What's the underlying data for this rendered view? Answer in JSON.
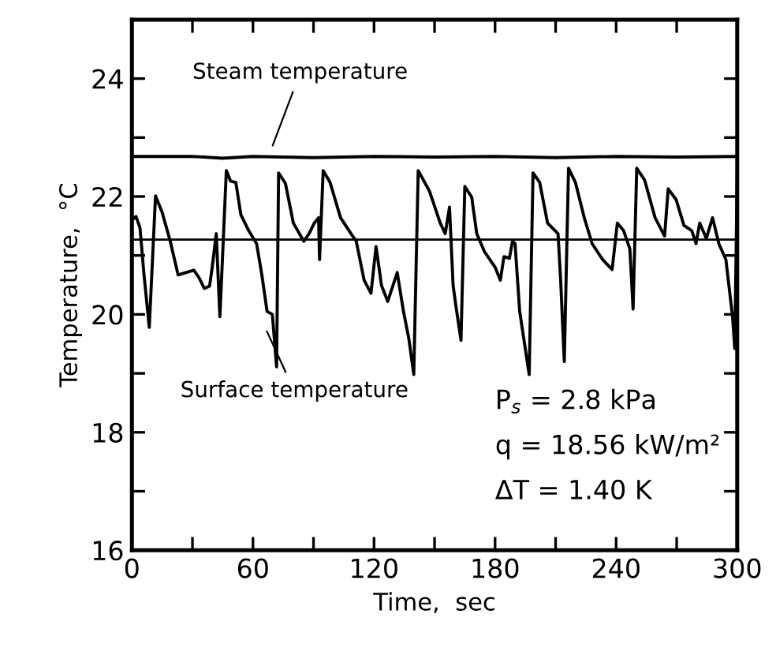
{
  "chart_data": {
    "type": "line",
    "xlabel": "Time,  sec",
    "ylabel": "Temperature,  °C",
    "xlim": [
      0,
      300
    ],
    "ylim": [
      16,
      25
    ],
    "xticks": [
      0,
      {
        "value": 30,
        "label": null
      },
      60,
      {
        "value": 90,
        "label": null
      },
      120,
      {
        "value": 150,
        "label": null
      },
      180,
      {
        "value": 210,
        "label": null
      },
      240,
      {
        "value": 270,
        "label": null
      },
      300
    ],
    "yticks": [
      16,
      {
        "value": 17,
        "label": null
      },
      18,
      {
        "value": 19,
        "label": null
      },
      20,
      {
        "value": 21,
        "label": null
      },
      22,
      {
        "value": 23,
        "label": null
      },
      24,
      {
        "value": 25,
        "label": null
      }
    ],
    "grid": false,
    "marker": "none",
    "line_style": "solid",
    "series": [
      {
        "name": "Steam temperature",
        "color": "#000000",
        "x": [
          0,
          30,
          45,
          60,
          90,
          120,
          150,
          180,
          210,
          240,
          270,
          300
        ],
        "values": [
          22.68,
          22.68,
          22.65,
          22.68,
          22.66,
          22.68,
          22.67,
          22.68,
          22.66,
          22.68,
          22.67,
          22.68
        ]
      },
      {
        "name": "Surface temperature",
        "color": "#000000",
        "x": [
          0,
          2,
          4,
          6,
          8.6,
          11.7,
          15,
          19,
          22.9,
          26.8,
          30.7,
          33.3,
          35.9,
          38.5,
          39.8,
          41.8,
          43.6,
          46.8,
          48.9,
          51.5,
          54,
          57.9,
          61.8,
          64.4,
          67,
          69.6,
          71.7,
          72.7,
          76.1,
          80,
          85.2,
          87.8,
          90.4,
          92.5,
          93,
          94.8,
          98.2,
          103.4,
          108.6,
          111.2,
          115.1,
          118.5,
          121,
          123.7,
          126.8,
          131.5,
          134.6,
          137.2,
          139.7,
          141.9,
          147.5,
          152.8,
          155.3,
          157.4,
          159.2,
          160.6,
          163.1,
          165,
          168.4,
          170.9,
          174.8,
          180,
          182.6,
          184.4,
          187.1,
          188.6,
          189.9,
          192.2,
          196.9,
          198.8,
          202.1,
          206,
          211.2,
          212.5,
          214.3,
          216.4,
          219.8,
          224.2,
          228.1,
          233.3,
          238,
          240.6,
          243.7,
          246.8,
          248.4,
          250.2,
          254.1,
          259.3,
          264,
          265.8,
          269.7,
          273.6,
          277.5,
          279.6,
          281.4,
          284.7,
          287.8,
          290.9,
          294.4,
          297.7,
          298.8,
          300
        ],
        "values": [
          21.6,
          21.66,
          21.47,
          20.67,
          19.78,
          22.01,
          21.73,
          21.24,
          20.67,
          20.71,
          20.75,
          20.62,
          20.44,
          20.48,
          20.8,
          21.37,
          19.96,
          22.44,
          22.26,
          22.24,
          21.69,
          21.42,
          21.2,
          20.67,
          20.05,
          20.0,
          19.11,
          22.4,
          22.22,
          21.55,
          21.24,
          21.37,
          21.55,
          21.64,
          20.93,
          22.44,
          22.24,
          21.64,
          21.37,
          21.24,
          20.58,
          20.36,
          21.15,
          20.49,
          20.22,
          20.71,
          20.05,
          19.6,
          18.98,
          22.44,
          22.09,
          21.55,
          21.37,
          21.82,
          20.49,
          20.14,
          19.56,
          22.17,
          21.99,
          21.37,
          21.06,
          20.8,
          20.58,
          20.98,
          20.95,
          21.24,
          21.2,
          20.05,
          18.98,
          22.4,
          22.24,
          21.55,
          21.37,
          20.58,
          19.2,
          22.48,
          22.24,
          21.64,
          21.2,
          20.93,
          20.76,
          21.55,
          21.42,
          21.11,
          20.09,
          22.48,
          22.28,
          21.64,
          21.33,
          22.13,
          21.95,
          21.51,
          21.42,
          21.2,
          21.55,
          21.29,
          21.64,
          21.2,
          20.93,
          19.96,
          19.42,
          22.4
        ]
      }
    ],
    "ref_lines": [
      {
        "axis": "y",
        "value": 21.27,
        "color": "#000000",
        "line_style": "solid"
      }
    ],
    "annotations": [
      "P$_{s}$ = 2.8 kPa",
      "q = 18.56 kW/m²",
      "ΔT = 1.40 K"
    ]
  }
}
